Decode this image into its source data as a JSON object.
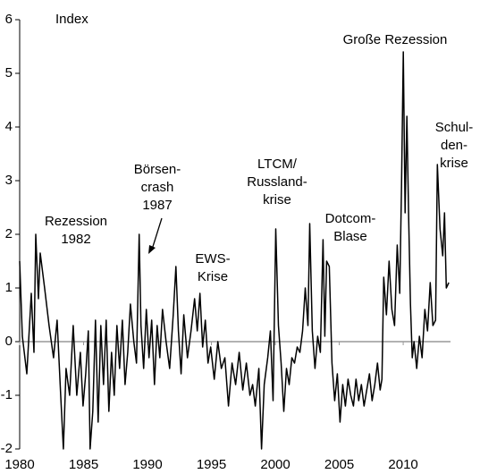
{
  "chart_data": {
    "type": "line",
    "ylabel": "Index",
    "x": [
      1980.0,
      1980.21,
      1980.56,
      1980.91,
      1981.12,
      1981.26,
      1981.47,
      1981.61,
      1981.95,
      1982.3,
      1982.65,
      1982.93,
      1983.21,
      1983.42,
      1983.63,
      1983.91,
      1984.19,
      1984.47,
      1984.75,
      1984.96,
      1985.17,
      1985.37,
      1985.51,
      1985.72,
      1985.93,
      1986.14,
      1986.35,
      1986.56,
      1986.77,
      1986.98,
      1987.19,
      1987.4,
      1987.61,
      1987.82,
      1988.03,
      1988.24,
      1988.45,
      1988.66,
      1988.93,
      1989.14,
      1989.35,
      1989.49,
      1989.7,
      1989.91,
      1990.12,
      1990.33,
      1990.54,
      1990.75,
      1990.96,
      1991.17,
      1991.45,
      1991.73,
      1992.01,
      1992.22,
      1992.42,
      1992.63,
      1992.84,
      1993.12,
      1993.4,
      1993.68,
      1993.89,
      1994.1,
      1994.31,
      1994.52,
      1994.73,
      1994.94,
      1995.22,
      1995.5,
      1995.77,
      1996.05,
      1996.33,
      1996.61,
      1996.89,
      1997.17,
      1997.45,
      1997.73,
      1998.01,
      1998.22,
      1998.43,
      1998.71,
      1998.92,
      1999.13,
      1999.4,
      1999.61,
      1999.82,
      2000.03,
      2000.24,
      2000.45,
      2000.66,
      2000.87,
      2001.08,
      2001.29,
      2001.5,
      2001.71,
      2001.92,
      2002.13,
      2002.34,
      2002.55,
      2002.69,
      2002.89,
      2003.1,
      2003.31,
      2003.52,
      2003.73,
      2003.87,
      2004.01,
      2004.22,
      2004.43,
      2004.64,
      2004.85,
      2005.06,
      2005.27,
      2005.48,
      2005.69,
      2005.9,
      2006.11,
      2006.31,
      2006.52,
      2006.73,
      2006.94,
      2007.15,
      2007.36,
      2007.57,
      2007.78,
      2007.99,
      2008.2,
      2008.34,
      2008.48,
      2008.69,
      2008.9,
      2009.11,
      2009.32,
      2009.53,
      2009.73,
      2009.87,
      2010.01,
      2010.15,
      2010.29,
      2010.43,
      2010.57,
      2010.71,
      2010.85,
      2011.06,
      2011.27,
      2011.48,
      2011.69,
      2011.9,
      2012.11,
      2012.32,
      2012.53,
      2012.67,
      2012.88,
      2013.09,
      2013.23,
      2013.37,
      2013.57
    ],
    "values": [
      1.5,
      0.1,
      -0.6,
      0.9,
      -0.2,
      2.0,
      0.8,
      1.65,
      1.0,
      0.3,
      -0.3,
      0.4,
      -1.0,
      -2.0,
      -0.5,
      -1.0,
      0.3,
      -1.0,
      -0.2,
      -1.2,
      -0.6,
      0.2,
      -2.0,
      -1.3,
      0.4,
      -1.5,
      0.3,
      -0.8,
      0.4,
      -1.3,
      -0.2,
      -1.0,
      0.3,
      -0.5,
      0.4,
      -0.8,
      -0.2,
      0.7,
      0.0,
      -0.4,
      2.0,
      0.3,
      -0.5,
      0.6,
      -0.3,
      0.4,
      -0.8,
      0.3,
      -0.3,
      0.6,
      0.0,
      -0.5,
      0.5,
      1.4,
      0.2,
      -0.6,
      0.5,
      -0.3,
      0.2,
      0.8,
      0.2,
      0.9,
      -0.1,
      0.4,
      -0.4,
      -0.1,
      -0.7,
      0.0,
      -0.5,
      -0.3,
      -1.2,
      -0.4,
      -0.8,
      -0.2,
      -0.9,
      -0.4,
      -1.0,
      -0.8,
      -1.2,
      -0.5,
      -2.0,
      -0.8,
      -0.3,
      0.2,
      -1.1,
      2.1,
      0.3,
      -0.4,
      -1.3,
      -0.5,
      -0.8,
      -0.3,
      -0.4,
      -0.1,
      -0.2,
      0.2,
      1.0,
      0.3,
      2.2,
      0.2,
      -0.5,
      0.1,
      -0.2,
      1.9,
      0.1,
      1.5,
      1.4,
      -0.4,
      -1.1,
      -0.6,
      -1.5,
      -0.8,
      -1.2,
      -0.7,
      -1.0,
      -1.2,
      -0.7,
      -1.1,
      -0.8,
      -1.2,
      -0.9,
      -0.6,
      -1.1,
      -0.8,
      -0.4,
      -0.9,
      -0.7,
      1.2,
      0.5,
      1.5,
      0.6,
      0.3,
      1.8,
      0.9,
      2.9,
      5.4,
      2.4,
      4.2,
      2.3,
      0.7,
      -0.3,
      0.0,
      -0.5,
      0.1,
      -0.3,
      0.6,
      0.2,
      1.1,
      0.3,
      0.4,
      3.3,
      2.1,
      1.6,
      2.4,
      1.0,
      1.1
    ],
    "color": "#000000",
    "zero_line_color": "#999999",
    "xlim": [
      1980,
      2013.7
    ],
    "xticks": [
      1980,
      1985,
      1990,
      1995,
      2000,
      2005,
      2010
    ],
    "ylim": [
      -2,
      6
    ],
    "yticks": [
      -2,
      -1,
      0,
      1,
      2,
      3,
      4,
      5,
      6
    ],
    "annotations": [
      {
        "lines": [
          "Rezession",
          "1982"
        ]
      },
      {
        "lines": [
          "Börsen-",
          "crash",
          "1987"
        ]
      },
      {
        "lines": [
          "EWS-",
          "Krise"
        ]
      },
      {
        "lines": [
          "LTCM/",
          "Russland-",
          "krise"
        ]
      },
      {
        "lines": [
          "Dotcom-",
          "Blase"
        ]
      },
      {
        "lines": [
          "Große Rezession"
        ]
      },
      {
        "lines": [
          "Schul-",
          "den-",
          "krise"
        ]
      }
    ]
  }
}
